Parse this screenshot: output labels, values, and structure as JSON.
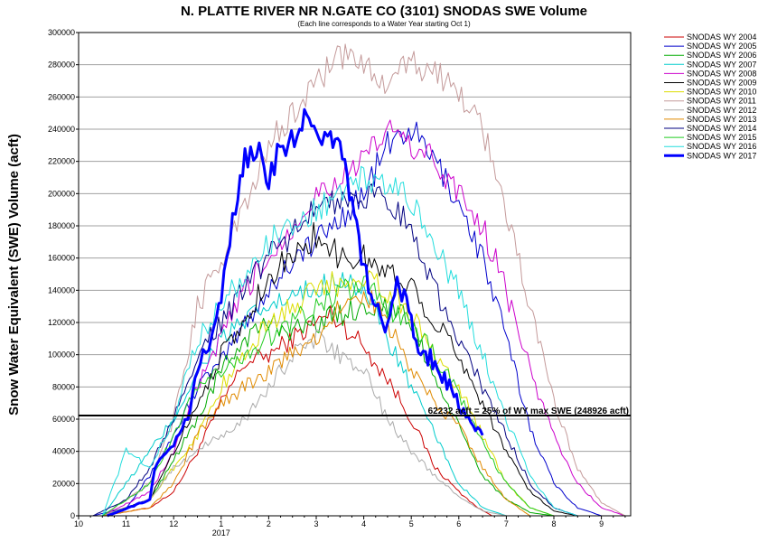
{
  "chart_data": {
    "type": "line",
    "title": "N. PLATTE RIVER NR N.GATE CO (3101) SNODAS SWE Volume",
    "subtitle": "(Each line corresponds to a Water Year starting Oct 1)",
    "ylabel": "Snow Water Equivalent (SWE) Volume (acft)",
    "xlabel": "",
    "ylim": [
      0,
      300000
    ],
    "xlim": [
      10,
      9.95
    ],
    "y_ticks": [
      "0",
      "20000",
      "40000",
      "60000",
      "80000",
      "100000",
      "120000",
      "140000",
      "160000",
      "180000",
      "200000",
      "220000",
      "240000",
      "260000",
      "280000",
      "300000"
    ],
    "x_ticks": [
      "10",
      "11",
      "12",
      "1",
      "2",
      "3",
      "4",
      "5",
      "6",
      "7",
      "8",
      "9"
    ],
    "x_year_label": "2017",
    "grid": "horizontal",
    "legend_position": "right",
    "reference_line": {
      "value": 62232,
      "label": "62232 acft = 25% of WY max SWE (248926 acft)"
    },
    "series": [
      {
        "name": "SNODAS WY 2004",
        "color": "#cc0000",
        "width": 1,
        "points": [
          [
            0.5,
            0
          ],
          [
            1.5,
            5000
          ],
          [
            2.0,
            15000
          ],
          [
            2.5,
            40000
          ],
          [
            3.0,
            70000
          ],
          [
            3.5,
            95000
          ],
          [
            4.0,
            100000
          ],
          [
            4.5,
            110000
          ],
          [
            5.0,
            120000
          ],
          [
            5.3,
            125000
          ],
          [
            5.7,
            115000
          ],
          [
            6.0,
            105000
          ],
          [
            6.5,
            85000
          ],
          [
            7.0,
            60000
          ],
          [
            7.5,
            30000
          ],
          [
            8.0,
            15000
          ],
          [
            8.4,
            5000
          ],
          [
            8.7,
            0
          ]
        ]
      },
      {
        "name": "SNODAS WY 2005",
        "color": "#0000cc",
        "width": 1,
        "points": [
          [
            0.3,
            0
          ],
          [
            1.0,
            5000
          ],
          [
            1.5,
            25000
          ],
          [
            2.0,
            50000
          ],
          [
            2.5,
            80000
          ],
          [
            3.0,
            95000
          ],
          [
            3.5,
            120000
          ],
          [
            4.0,
            140000
          ],
          [
            4.5,
            160000
          ],
          [
            5.0,
            170000
          ],
          [
            5.5,
            185000
          ],
          [
            6.0,
            200000
          ],
          [
            6.5,
            230000
          ],
          [
            7.0,
            240000
          ],
          [
            7.5,
            220000
          ],
          [
            8.0,
            195000
          ],
          [
            8.5,
            160000
          ],
          [
            9.0,
            110000
          ],
          [
            9.5,
            55000
          ],
          [
            10.0,
            20000
          ],
          [
            10.5,
            5000
          ],
          [
            11.0,
            0
          ]
        ]
      },
      {
        "name": "SNODAS WY 2006",
        "color": "#00aa00",
        "width": 1,
        "points": [
          [
            0.5,
            0
          ],
          [
            1.5,
            10000
          ],
          [
            2.5,
            60000
          ],
          [
            3.0,
            90000
          ],
          [
            3.5,
            110000
          ],
          [
            4.0,
            120000
          ],
          [
            4.5,
            115000
          ],
          [
            5.0,
            120000
          ],
          [
            5.5,
            125000
          ],
          [
            6.0,
            130000
          ],
          [
            6.5,
            130000
          ],
          [
            7.0,
            120000
          ],
          [
            7.5,
            85000
          ],
          [
            8.0,
            55000
          ],
          [
            8.5,
            25000
          ],
          [
            9.0,
            10000
          ],
          [
            9.5,
            2000
          ],
          [
            10.0,
            0
          ]
        ]
      },
      {
        "name": "SNODAS WY 2007",
        "color": "#00cccc",
        "width": 1,
        "points": [
          [
            0.5,
            0
          ],
          [
            1.0,
            20000
          ],
          [
            1.5,
            40000
          ],
          [
            2.0,
            60000
          ],
          [
            2.5,
            90000
          ],
          [
            3.0,
            110000
          ],
          [
            3.5,
            120000
          ],
          [
            4.0,
            130000
          ],
          [
            4.5,
            135000
          ],
          [
            5.0,
            140000
          ],
          [
            5.5,
            150000
          ],
          [
            6.0,
            140000
          ],
          [
            6.5,
            110000
          ],
          [
            7.0,
            80000
          ],
          [
            7.5,
            50000
          ],
          [
            8.0,
            20000
          ],
          [
            8.5,
            5000
          ],
          [
            9.0,
            0
          ]
        ]
      },
      {
        "name": "SNODAS WY 2008",
        "color": "#cc00cc",
        "width": 1,
        "points": [
          [
            0.5,
            0
          ],
          [
            1.5,
            15000
          ],
          [
            2.0,
            40000
          ],
          [
            2.5,
            80000
          ],
          [
            3.0,
            110000
          ],
          [
            3.5,
            140000
          ],
          [
            4.0,
            160000
          ],
          [
            4.5,
            180000
          ],
          [
            5.0,
            200000
          ],
          [
            5.5,
            210000
          ],
          [
            6.0,
            220000
          ],
          [
            6.5,
            240000
          ],
          [
            7.0,
            230000
          ],
          [
            7.5,
            220000
          ],
          [
            8.0,
            200000
          ],
          [
            8.5,
            180000
          ],
          [
            9.0,
            140000
          ],
          [
            9.5,
            90000
          ],
          [
            10.0,
            50000
          ],
          [
            10.5,
            20000
          ],
          [
            11.0,
            5000
          ],
          [
            11.5,
            0
          ]
        ]
      },
      {
        "name": "SNODAS WY 2009",
        "color": "#000000",
        "width": 1,
        "points": [
          [
            0.5,
            0
          ],
          [
            1.5,
            10000
          ],
          [
            2.0,
            40000
          ],
          [
            2.5,
            70000
          ],
          [
            3.0,
            100000
          ],
          [
            3.5,
            120000
          ],
          [
            4.0,
            150000
          ],
          [
            4.5,
            160000
          ],
          [
            5.0,
            175000
          ],
          [
            5.5,
            160000
          ],
          [
            6.0,
            160000
          ],
          [
            6.5,
            150000
          ],
          [
            7.0,
            145000
          ],
          [
            7.5,
            120000
          ],
          [
            8.0,
            100000
          ],
          [
            8.5,
            70000
          ],
          [
            9.0,
            40000
          ],
          [
            9.5,
            15000
          ],
          [
            10.0,
            3000
          ],
          [
            10.5,
            0
          ]
        ]
      },
      {
        "name": "SNODAS WY 2010",
        "color": "#dddd00",
        "width": 1,
        "points": [
          [
            0.5,
            0
          ],
          [
            1.5,
            10000
          ],
          [
            2.5,
            50000
          ],
          [
            3.0,
            80000
          ],
          [
            3.5,
            100000
          ],
          [
            4.0,
            120000
          ],
          [
            4.5,
            130000
          ],
          [
            5.0,
            140000
          ],
          [
            5.5,
            145000
          ],
          [
            6.0,
            150000
          ],
          [
            6.5,
            140000
          ],
          [
            7.0,
            125000
          ],
          [
            7.5,
            100000
          ],
          [
            8.0,
            80000
          ],
          [
            8.5,
            50000
          ],
          [
            9.0,
            20000
          ],
          [
            9.5,
            5000
          ],
          [
            10.0,
            0
          ]
        ]
      },
      {
        "name": "SNODAS WY 2011",
        "color": "#c49a9a",
        "width": 1,
        "points": [
          [
            0.5,
            0
          ],
          [
            1.5,
            20000
          ],
          [
            2.0,
            60000
          ],
          [
            2.5,
            130000
          ],
          [
            3.0,
            160000
          ],
          [
            3.5,
            190000
          ],
          [
            4.0,
            230000
          ],
          [
            4.5,
            250000
          ],
          [
            5.0,
            270000
          ],
          [
            5.5,
            285000
          ],
          [
            6.0,
            280000
          ],
          [
            6.5,
            270000
          ],
          [
            7.0,
            280000
          ],
          [
            7.5,
            275000
          ],
          [
            8.0,
            265000
          ],
          [
            8.5,
            240000
          ],
          [
            9.0,
            190000
          ],
          [
            9.5,
            130000
          ],
          [
            10.0,
            70000
          ],
          [
            10.5,
            30000
          ],
          [
            11.0,
            8000
          ],
          [
            11.5,
            0
          ]
        ]
      },
      {
        "name": "SNODAS WY 2012",
        "color": "#aaaaaa",
        "width": 1,
        "points": [
          [
            0.5,
            0
          ],
          [
            1.5,
            10000
          ],
          [
            2.0,
            30000
          ],
          [
            2.5,
            40000
          ],
          [
            3.0,
            50000
          ],
          [
            3.5,
            60000
          ],
          [
            4.0,
            80000
          ],
          [
            4.5,
            100000
          ],
          [
            5.0,
            110000
          ],
          [
            5.5,
            100000
          ],
          [
            6.0,
            90000
          ],
          [
            6.5,
            60000
          ],
          [
            7.0,
            40000
          ],
          [
            7.5,
            25000
          ],
          [
            8.0,
            12000
          ],
          [
            8.5,
            3000
          ],
          [
            9.0,
            0
          ]
        ]
      },
      {
        "name": "SNODAS WY 2013",
        "color": "#e08a00",
        "width": 1,
        "points": [
          [
            0.5,
            0
          ],
          [
            1.5,
            5000
          ],
          [
            2.0,
            20000
          ],
          [
            2.5,
            50000
          ],
          [
            3.0,
            70000
          ],
          [
            3.5,
            80000
          ],
          [
            4.0,
            90000
          ],
          [
            4.5,
            100000
          ],
          [
            5.0,
            110000
          ],
          [
            5.5,
            130000
          ],
          [
            6.0,
            140000
          ],
          [
            6.5,
            120000
          ],
          [
            7.0,
            90000
          ],
          [
            7.5,
            70000
          ],
          [
            8.0,
            55000
          ],
          [
            8.5,
            30000
          ],
          [
            9.0,
            10000
          ],
          [
            9.5,
            0
          ]
        ]
      },
      {
        "name": "SNODAS WY 2014",
        "color": "#000080",
        "width": 1,
        "points": [
          [
            0.3,
            0
          ],
          [
            1.0,
            10000
          ],
          [
            1.5,
            30000
          ],
          [
            2.0,
            60000
          ],
          [
            2.5,
            100000
          ],
          [
            3.0,
            120000
          ],
          [
            3.5,
            140000
          ],
          [
            4.0,
            160000
          ],
          [
            4.5,
            175000
          ],
          [
            5.0,
            190000
          ],
          [
            5.5,
            195000
          ],
          [
            6.0,
            200000
          ],
          [
            6.5,
            195000
          ],
          [
            7.0,
            180000
          ],
          [
            7.5,
            140000
          ],
          [
            8.0,
            110000
          ],
          [
            8.5,
            80000
          ],
          [
            9.0,
            50000
          ],
          [
            9.5,
            20000
          ],
          [
            10.0,
            5000
          ],
          [
            10.5,
            0
          ]
        ]
      },
      {
        "name": "SNODAS WY 2015",
        "color": "#22cc22",
        "width": 1,
        "points": [
          [
            0.5,
            0
          ],
          [
            1.5,
            20000
          ],
          [
            2.5,
            80000
          ],
          [
            3.0,
            90000
          ],
          [
            3.5,
            100000
          ],
          [
            4.0,
            110000
          ],
          [
            4.5,
            120000
          ],
          [
            5.0,
            130000
          ],
          [
            5.5,
            140000
          ],
          [
            6.0,
            145000
          ],
          [
            6.5,
            130000
          ],
          [
            7.0,
            120000
          ],
          [
            7.5,
            100000
          ],
          [
            8.0,
            75000
          ],
          [
            8.5,
            45000
          ],
          [
            9.0,
            20000
          ],
          [
            9.5,
            5000
          ],
          [
            10.0,
            0
          ]
        ]
      },
      {
        "name": "SNODAS WY 2016",
        "color": "#22dddd",
        "width": 1,
        "points": [
          [
            0.5,
            0
          ],
          [
            1.0,
            40000
          ],
          [
            1.5,
            30000
          ],
          [
            2.0,
            60000
          ],
          [
            2.5,
            110000
          ],
          [
            3.0,
            130000
          ],
          [
            3.5,
            150000
          ],
          [
            4.0,
            170000
          ],
          [
            4.5,
            180000
          ],
          [
            5.0,
            190000
          ],
          [
            5.5,
            200000
          ],
          [
            6.0,
            210000
          ],
          [
            6.5,
            205000
          ],
          [
            7.0,
            195000
          ],
          [
            7.5,
            170000
          ],
          [
            8.0,
            140000
          ],
          [
            8.5,
            100000
          ],
          [
            9.0,
            60000
          ],
          [
            9.5,
            25000
          ],
          [
            10.0,
            5000
          ],
          [
            10.5,
            0
          ]
        ]
      },
      {
        "name": "SNODAS WY 2017",
        "color": "#0000ff",
        "width": 3,
        "points": [
          [
            0.6,
            0
          ],
          [
            1.5,
            10000
          ],
          [
            1.6,
            30000
          ],
          [
            2.0,
            45000
          ],
          [
            2.3,
            60000
          ],
          [
            2.5,
            90000
          ],
          [
            2.8,
            110000
          ],
          [
            3.0,
            140000
          ],
          [
            3.3,
            190000
          ],
          [
            3.5,
            220000
          ],
          [
            3.8,
            225000
          ],
          [
            4.0,
            210000
          ],
          [
            4.3,
            230000
          ],
          [
            4.6,
            240000
          ],
          [
            4.8,
            245000
          ],
          [
            5.0,
            230000
          ],
          [
            5.3,
            235000
          ],
          [
            5.5,
            225000
          ],
          [
            5.7,
            200000
          ],
          [
            5.9,
            170000
          ],
          [
            6.1,
            140000
          ],
          [
            6.3,
            125000
          ],
          [
            6.5,
            120000
          ],
          [
            6.7,
            140000
          ],
          [
            6.9,
            130000
          ],
          [
            7.1,
            110000
          ],
          [
            7.3,
            100000
          ],
          [
            7.5,
            95000
          ],
          [
            7.7,
            85000
          ],
          [
            7.9,
            75000
          ],
          [
            8.1,
            65000
          ],
          [
            8.3,
            55000
          ],
          [
            8.5,
            50000
          ]
        ]
      }
    ]
  }
}
